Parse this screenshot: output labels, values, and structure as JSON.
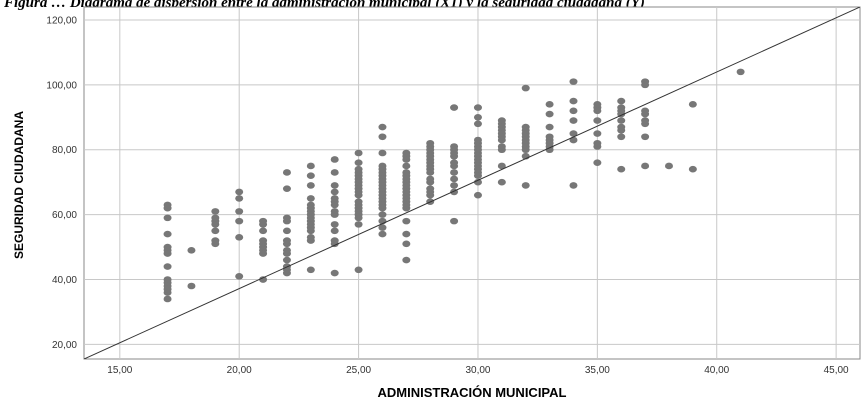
{
  "caption": "Figura … Diagrama de dispersión entre la administración municipal (X1) y la seguridad ciudadana (Y)",
  "chart_data": {
    "type": "scatter",
    "title": "",
    "xlabel": "ADMINISTRACIÓN MUNICIPAL",
    "ylabel": "SEGURIDAD CIUDADANA",
    "xlim": [
      13.5,
      46.0
    ],
    "ylim": [
      15.5,
      124.0
    ],
    "xticks": [
      "15,00",
      "20,00",
      "25,00",
      "30,00",
      "35,00",
      "40,00",
      "45,00"
    ],
    "yticks": [
      "20,00",
      "40,00",
      "60,00",
      "80,00",
      "100,00",
      "120,00"
    ],
    "grid": true,
    "marker_color": "#777777",
    "fit_line": {
      "x": [
        13.5,
        46.0
      ],
      "y": [
        15.5,
        124.0
      ]
    },
    "points": [
      [
        17,
        34
      ],
      [
        17,
        36
      ],
      [
        17,
        37
      ],
      [
        17,
        38
      ],
      [
        17,
        39
      ],
      [
        17,
        40
      ],
      [
        17,
        44
      ],
      [
        17,
        48
      ],
      [
        17,
        49
      ],
      [
        17,
        50
      ],
      [
        17,
        54
      ],
      [
        17,
        59
      ],
      [
        17,
        62
      ],
      [
        17,
        63
      ],
      [
        18,
        38
      ],
      [
        18,
        49
      ],
      [
        19,
        51
      ],
      [
        19,
        52
      ],
      [
        19,
        55
      ],
      [
        19,
        57
      ],
      [
        19,
        58
      ],
      [
        19,
        59
      ],
      [
        19,
        61
      ],
      [
        20,
        41
      ],
      [
        20,
        53
      ],
      [
        20,
        58
      ],
      [
        20,
        61
      ],
      [
        20,
        65
      ],
      [
        20,
        67
      ],
      [
        21,
        40
      ],
      [
        21,
        48
      ],
      [
        21,
        49
      ],
      [
        21,
        50
      ],
      [
        21,
        51
      ],
      [
        21,
        52
      ],
      [
        21,
        55
      ],
      [
        21,
        57
      ],
      [
        21,
        58
      ],
      [
        22,
        42
      ],
      [
        22,
        43
      ],
      [
        22,
        44
      ],
      [
        22,
        46
      ],
      [
        22,
        48
      ],
      [
        22,
        49
      ],
      [
        22,
        51
      ],
      [
        22,
        52
      ],
      [
        22,
        55
      ],
      [
        22,
        58
      ],
      [
        22,
        59
      ],
      [
        22,
        68
      ],
      [
        22,
        73
      ],
      [
        23,
        43
      ],
      [
        23,
        52
      ],
      [
        23,
        53
      ],
      [
        23,
        55
      ],
      [
        23,
        56
      ],
      [
        23,
        57
      ],
      [
        23,
        58
      ],
      [
        23,
        59
      ],
      [
        23,
        60
      ],
      [
        23,
        61
      ],
      [
        23,
        62
      ],
      [
        23,
        63
      ],
      [
        23,
        65
      ],
      [
        23,
        69
      ],
      [
        23,
        72
      ],
      [
        23,
        75
      ],
      [
        24,
        42
      ],
      [
        24,
        51
      ],
      [
        24,
        52
      ],
      [
        24,
        55
      ],
      [
        24,
        57
      ],
      [
        24,
        60
      ],
      [
        24,
        61
      ],
      [
        24,
        63
      ],
      [
        24,
        64
      ],
      [
        24,
        65
      ],
      [
        24,
        67
      ],
      [
        24,
        69
      ],
      [
        24,
        73
      ],
      [
        24,
        77
      ],
      [
        25,
        43
      ],
      [
        25,
        57
      ],
      [
        25,
        59
      ],
      [
        25,
        60
      ],
      [
        25,
        61
      ],
      [
        25,
        62
      ],
      [
        25,
        63
      ],
      [
        25,
        64
      ],
      [
        25,
        66
      ],
      [
        25,
        67
      ],
      [
        25,
        68
      ],
      [
        25,
        69
      ],
      [
        25,
        70
      ],
      [
        25,
        71
      ],
      [
        25,
        72
      ],
      [
        25,
        73
      ],
      [
        25,
        74
      ],
      [
        25,
        76
      ],
      [
        25,
        79
      ],
      [
        26,
        54
      ],
      [
        26,
        56
      ],
      [
        26,
        58
      ],
      [
        26,
        60
      ],
      [
        26,
        62
      ],
      [
        26,
        63
      ],
      [
        26,
        64
      ],
      [
        26,
        65
      ],
      [
        26,
        66
      ],
      [
        26,
        67
      ],
      [
        26,
        68
      ],
      [
        26,
        69
      ],
      [
        26,
        70
      ],
      [
        26,
        71
      ],
      [
        26,
        72
      ],
      [
        26,
        73
      ],
      [
        26,
        74
      ],
      [
        26,
        75
      ],
      [
        26,
        79
      ],
      [
        26,
        84
      ],
      [
        26,
        87
      ],
      [
        27,
        46
      ],
      [
        27,
        51
      ],
      [
        27,
        54
      ],
      [
        27,
        58
      ],
      [
        27,
        62
      ],
      [
        27,
        63
      ],
      [
        27,
        64
      ],
      [
        27,
        65
      ],
      [
        27,
        66
      ],
      [
        27,
        67
      ],
      [
        27,
        68
      ],
      [
        27,
        69
      ],
      [
        27,
        70
      ],
      [
        27,
        71
      ],
      [
        27,
        72
      ],
      [
        27,
        73
      ],
      [
        27,
        75
      ],
      [
        27,
        77
      ],
      [
        27,
        78
      ],
      [
        27,
        79
      ],
      [
        28,
        64
      ],
      [
        28,
        66
      ],
      [
        28,
        67
      ],
      [
        28,
        68
      ],
      [
        28,
        70
      ],
      [
        28,
        71
      ],
      [
        28,
        73
      ],
      [
        28,
        74
      ],
      [
        28,
        75
      ],
      [
        28,
        76
      ],
      [
        28,
        77
      ],
      [
        28,
        78
      ],
      [
        28,
        79
      ],
      [
        28,
        80
      ],
      [
        28,
        81
      ],
      [
        28,
        82
      ],
      [
        29,
        58
      ],
      [
        29,
        67
      ],
      [
        29,
        69
      ],
      [
        29,
        71
      ],
      [
        29,
        73
      ],
      [
        29,
        75
      ],
      [
        29,
        76
      ],
      [
        29,
        78
      ],
      [
        29,
        79
      ],
      [
        29,
        80
      ],
      [
        29,
        81
      ],
      [
        29,
        93
      ],
      [
        30,
        66
      ],
      [
        30,
        70
      ],
      [
        30,
        72
      ],
      [
        30,
        73
      ],
      [
        30,
        74
      ],
      [
        30,
        75
      ],
      [
        30,
        76
      ],
      [
        30,
        77
      ],
      [
        30,
        78
      ],
      [
        30,
        79
      ],
      [
        30,
        80
      ],
      [
        30,
        81
      ],
      [
        30,
        82
      ],
      [
        30,
        83
      ],
      [
        30,
        88
      ],
      [
        30,
        90
      ],
      [
        30,
        93
      ],
      [
        31,
        70
      ],
      [
        31,
        75
      ],
      [
        31,
        80
      ],
      [
        31,
        81
      ],
      [
        31,
        83
      ],
      [
        31,
        84
      ],
      [
        31,
        85
      ],
      [
        31,
        86
      ],
      [
        31,
        87
      ],
      [
        31,
        88
      ],
      [
        31,
        89
      ],
      [
        32,
        69
      ],
      [
        32,
        78
      ],
      [
        32,
        80
      ],
      [
        32,
        81
      ],
      [
        32,
        82
      ],
      [
        32,
        83
      ],
      [
        32,
        84
      ],
      [
        32,
        85
      ],
      [
        32,
        86
      ],
      [
        32,
        87
      ],
      [
        32,
        99
      ],
      [
        33,
        80
      ],
      [
        33,
        81
      ],
      [
        33,
        82
      ],
      [
        33,
        83
      ],
      [
        33,
        84
      ],
      [
        33,
        87
      ],
      [
        33,
        91
      ],
      [
        33,
        94
      ],
      [
        34,
        69
      ],
      [
        34,
        83
      ],
      [
        34,
        85
      ],
      [
        34,
        89
      ],
      [
        34,
        92
      ],
      [
        34,
        95
      ],
      [
        34,
        101
      ],
      [
        35,
        76
      ],
      [
        35,
        81
      ],
      [
        35,
        82
      ],
      [
        35,
        85
      ],
      [
        35,
        89
      ],
      [
        35,
        92
      ],
      [
        35,
        93
      ],
      [
        35,
        94
      ],
      [
        36,
        74
      ],
      [
        36,
        84
      ],
      [
        36,
        86
      ],
      [
        36,
        87
      ],
      [
        36,
        89
      ],
      [
        36,
        91
      ],
      [
        36,
        92
      ],
      [
        36,
        93
      ],
      [
        36,
        95
      ],
      [
        37,
        75
      ],
      [
        37,
        84
      ],
      [
        37,
        88
      ],
      [
        37,
        89
      ],
      [
        37,
        91
      ],
      [
        37,
        92
      ],
      [
        37,
        100
      ],
      [
        37,
        101
      ],
      [
        38,
        75
      ],
      [
        39,
        74
      ],
      [
        39,
        94
      ],
      [
        41,
        104
      ]
    ]
  }
}
